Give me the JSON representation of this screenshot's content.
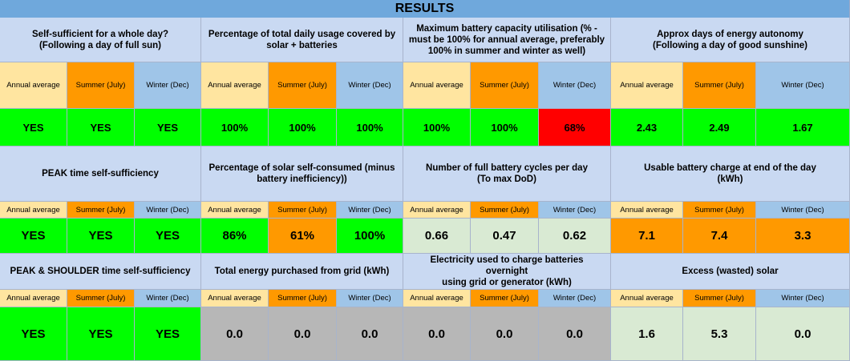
{
  "title": "RESULTS",
  "colors": {
    "title_bg": "#6fa8dc",
    "header_bg": "#c9d9f2",
    "annual_bg": "#ffe5a0",
    "summer_bg": "#ff9900",
    "winter_bg": "#9fc5e8",
    "green": "#00ff00",
    "red": "#ff0000",
    "orange": "#ff9900",
    "light_green": "#d9ead3",
    "gray": "#b7b7b7"
  },
  "season_labels": {
    "annual": "Annual average",
    "summer": "Summer (July)",
    "winter": "Winter (Dec)"
  },
  "rows": [
    {
      "metrics": [
        {
          "title": [
            "Self-sufficient for a whole day?",
            "(Following a day of full sun)"
          ],
          "values": [
            {
              "v": "YES",
              "c": "green"
            },
            {
              "v": "YES",
              "c": "green"
            },
            {
              "v": "YES",
              "c": "green"
            }
          ]
        },
        {
          "title": [
            "Percentage of total daily usage covered by",
            "solar + batteries"
          ],
          "values": [
            {
              "v": "100%",
              "c": "green"
            },
            {
              "v": "100%",
              "c": "green"
            },
            {
              "v": "100%",
              "c": "green"
            }
          ]
        },
        {
          "title": [
            "Maximum battery capacity utilisation (% -",
            "must be 100% for annual average, preferably",
            "100% in summer and winter as well)"
          ],
          "values": [
            {
              "v": "100%",
              "c": "green"
            },
            {
              "v": "100%",
              "c": "green"
            },
            {
              "v": "68%",
              "c": "red"
            }
          ]
        },
        {
          "title": [
            "Approx days of energy autonomy",
            "(Following a day of good sunshine)"
          ],
          "values": [
            {
              "v": "2.43",
              "c": "green"
            },
            {
              "v": "2.49",
              "c": "green"
            },
            {
              "v": "1.67",
              "c": "green"
            }
          ]
        }
      ]
    },
    {
      "metrics": [
        {
          "title": [
            "PEAK time self-sufficiency"
          ],
          "values": [
            {
              "v": "YES",
              "c": "green"
            },
            {
              "v": "YES",
              "c": "green"
            },
            {
              "v": "YES",
              "c": "green"
            }
          ]
        },
        {
          "title": [
            "Percentage of solar self-consumed (minus",
            "battery inefficiency))"
          ],
          "values": [
            {
              "v": "86%",
              "c": "green"
            },
            {
              "v": "61%",
              "c": "orange"
            },
            {
              "v": "100%",
              "c": "green"
            }
          ]
        },
        {
          "title": [
            "Number of full battery cycles per day",
            "(To max DoD)"
          ],
          "values": [
            {
              "v": "0.66",
              "c": "light_green"
            },
            {
              "v": "0.47",
              "c": "light_green"
            },
            {
              "v": "0.62",
              "c": "light_green"
            }
          ]
        },
        {
          "title": [
            "Usable battery charge at end of the day",
            "(kWh)"
          ],
          "values": [
            {
              "v": "7.1",
              "c": "orange"
            },
            {
              "v": "7.4",
              "c": "orange"
            },
            {
              "v": "3.3",
              "c": "orange"
            }
          ]
        }
      ]
    },
    {
      "metrics": [
        {
          "title": [
            "PEAK & SHOULDER time self-sufficiency"
          ],
          "values": [
            {
              "v": "YES",
              "c": "green"
            },
            {
              "v": "YES",
              "c": "green"
            },
            {
              "v": "YES",
              "c": "green"
            }
          ]
        },
        {
          "title": [
            "Total energy purchased from grid (kWh)"
          ],
          "values": [
            {
              "v": "0.0",
              "c": "gray"
            },
            {
              "v": "0.0",
              "c": "gray"
            },
            {
              "v": "0.0",
              "c": "gray"
            }
          ]
        },
        {
          "title": [
            "Electricity used to charge batteries overnight",
            "using grid or generator (kWh)"
          ],
          "values": [
            {
              "v": "0.0",
              "c": "gray"
            },
            {
              "v": "0.0",
              "c": "gray"
            },
            {
              "v": "0.0",
              "c": "gray"
            }
          ]
        },
        {
          "title": [
            "Excess (wasted) solar"
          ],
          "values": [
            {
              "v": "1.6",
              "c": "light_green"
            },
            {
              "v": "5.3",
              "c": "light_green"
            },
            {
              "v": "0.0",
              "c": "light_green"
            }
          ]
        }
      ]
    }
  ]
}
